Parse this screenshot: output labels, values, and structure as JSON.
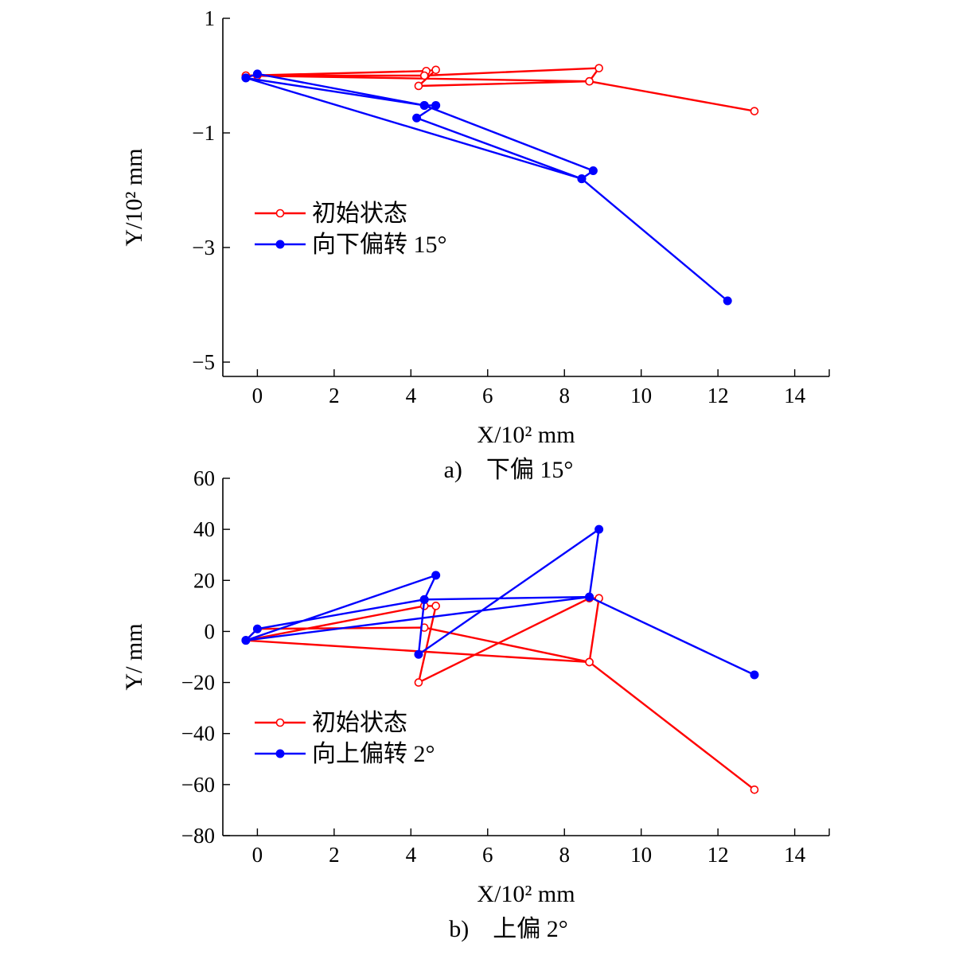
{
  "chart_data": [
    {
      "type": "line",
      "xlabel": "X/10² mm",
      "ylabel": "Y/10² mm",
      "caption": "a)　下偏 15°",
      "xlim": [
        -0.9,
        14.9
      ],
      "ylim": [
        -5.25,
        1
      ],
      "xticks": [
        0,
        2,
        4,
        6,
        8,
        10,
        12,
        14
      ],
      "yticks": [
        1,
        -1,
        -3,
        -5
      ],
      "grid": false,
      "legend_position": "middle-left",
      "series": [
        {
          "name": "初始状态",
          "color": "#ff0000",
          "marker": "open-circle",
          "points": [
            [
              -0.3,
              0.0
            ],
            [
              4.4,
              0.08
            ],
            [
              4.65,
              0.1
            ],
            [
              4.2,
              -0.18
            ],
            [
              8.65,
              -0.1
            ],
            [
              8.9,
              0.13
            ],
            [
              4.35,
              0.0
            ],
            [
              0.0,
              0.0
            ],
            [
              -0.3,
              0.0
            ],
            [
              8.65,
              -0.1
            ],
            [
              12.95,
              -0.62
            ]
          ]
        },
        {
          "name": "向下偏转 15°",
          "color": "#0000ff",
          "marker": "filled-circle",
          "points": [
            [
              -0.3,
              -0.04
            ],
            [
              4.35,
              -0.52
            ],
            [
              4.65,
              -0.52
            ],
            [
              4.15,
              -0.74
            ],
            [
              8.45,
              -1.8
            ],
            [
              8.75,
              -1.66
            ],
            [
              4.35,
              -0.52
            ],
            [
              0.0,
              0.03
            ],
            [
              -0.3,
              -0.04
            ],
            [
              8.45,
              -1.8
            ],
            [
              12.25,
              -3.93
            ]
          ]
        }
      ]
    },
    {
      "type": "line",
      "xlabel": "X/10² mm",
      "ylabel": "Y/ mm",
      "caption": "b)　上偏 2°",
      "xlim": [
        -0.9,
        14.9
      ],
      "ylim": [
        -80,
        60
      ],
      "xticks": [
        0,
        2,
        4,
        6,
        8,
        10,
        12,
        14
      ],
      "yticks": [
        60,
        40,
        20,
        0,
        -20,
        -40,
        -60,
        -80
      ],
      "grid": false,
      "legend_position": "lower-left",
      "series": [
        {
          "name": "初始状态",
          "color": "#ff0000",
          "marker": "open-circle",
          "points": [
            [
              -0.3,
              -3.5
            ],
            [
              4.35,
              10
            ],
            [
              4.65,
              10
            ],
            [
              4.2,
              -20
            ],
            [
              8.65,
              13
            ],
            [
              8.9,
              13
            ],
            [
              8.65,
              -12
            ],
            [
              4.35,
              1.5
            ],
            [
              0.0,
              1.0
            ],
            [
              -0.3,
              -3.5
            ],
            [
              8.65,
              -12
            ],
            [
              12.95,
              -62
            ]
          ]
        },
        {
          "name": "向上偏转 2°",
          "color": "#0000ff",
          "marker": "filled-circle",
          "points": [
            [
              -0.3,
              -3.5
            ],
            [
              4.65,
              22
            ],
            [
              4.35,
              12.5
            ],
            [
              4.2,
              -9
            ],
            [
              8.9,
              40
            ],
            [
              8.65,
              13.5
            ],
            [
              4.35,
              12.5
            ],
            [
              0.0,
              1.0
            ],
            [
              -0.3,
              -3.5
            ],
            [
              8.65,
              13.5
            ],
            [
              12.95,
              -17
            ]
          ]
        }
      ]
    }
  ]
}
